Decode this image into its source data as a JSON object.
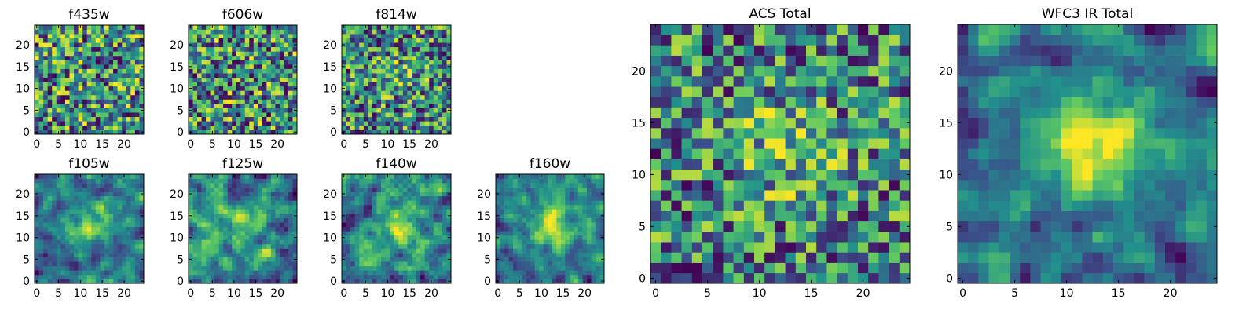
{
  "figure": {
    "title": ""
  },
  "colormap": [
    "#440154",
    "#3b528b",
    "#21918c",
    "#5ec962",
    "#fde725"
  ],
  "chart_data": [
    {
      "type": "heatmap",
      "title": "f435w",
      "size": 25,
      "seed": 11,
      "smooth": 0,
      "center_boost": 0.0,
      "xticks": [
        0,
        5,
        10,
        15,
        20
      ],
      "yticks": [
        0,
        5,
        10,
        15,
        20
      ],
      "xlim": [
        -0.5,
        24.5
      ],
      "ylim": [
        -0.5,
        24.5
      ],
      "value_range": [
        0,
        1
      ],
      "ticks": {
        "x0": "0",
        "x1": "5",
        "x2": "10",
        "x3": "15",
        "x4": "20",
        "y0": "0",
        "y1": "5",
        "y2": "10",
        "y3": "15",
        "y4": "20"
      }
    },
    {
      "type": "heatmap",
      "title": "f606w",
      "size": 25,
      "seed": 23,
      "smooth": 0,
      "center_boost": 0.0,
      "xticks": [
        0,
        5,
        10,
        15,
        20
      ],
      "yticks": [
        0,
        5,
        10,
        15,
        20
      ],
      "xlim": [
        -0.5,
        24.5
      ],
      "ylim": [
        -0.5,
        24.5
      ],
      "value_range": [
        0,
        1
      ],
      "ticks": {
        "x0": "0",
        "x1": "5",
        "x2": "10",
        "x3": "15",
        "x4": "20",
        "y0": "0",
        "y1": "5",
        "y2": "10",
        "y3": "15",
        "y4": "20"
      }
    },
    {
      "type": "heatmap",
      "title": "f814w",
      "size": 25,
      "seed": 37,
      "smooth": 0,
      "center_boost": 0.15,
      "xticks": [
        0,
        5,
        10,
        15,
        20
      ],
      "yticks": [
        0,
        5,
        10,
        15,
        20
      ],
      "xlim": [
        -0.5,
        24.5
      ],
      "ylim": [
        -0.5,
        24.5
      ],
      "value_range": [
        0,
        1
      ],
      "ticks": {
        "x0": "0",
        "x1": "5",
        "x2": "10",
        "x3": "15",
        "x4": "20",
        "y0": "0",
        "y1": "5",
        "y2": "10",
        "y3": "15",
        "y4": "20"
      }
    },
    {
      "type": "heatmap",
      "title": "f105w",
      "size": 25,
      "seed": 41,
      "smooth": 1,
      "center_boost": 0.45,
      "xticks": [
        0,
        5,
        10,
        15,
        20
      ],
      "yticks": [
        0,
        5,
        10,
        15,
        20
      ],
      "xlim": [
        -0.5,
        24.5
      ],
      "ylim": [
        -0.5,
        24.5
      ],
      "value_range": [
        0,
        1
      ],
      "ticks": {
        "x0": "0",
        "x1": "5",
        "x2": "10",
        "x3": "15",
        "x4": "20",
        "y0": "0",
        "y1": "5",
        "y2": "10",
        "y3": "15",
        "y4": "20"
      }
    },
    {
      "type": "heatmap",
      "title": "f125w",
      "size": 25,
      "seed": 53,
      "smooth": 1,
      "center_boost": 0.2,
      "xticks": [
        0,
        5,
        10,
        15,
        20
      ],
      "yticks": [
        0,
        5,
        10,
        15,
        20
      ],
      "xlim": [
        -0.5,
        24.5
      ],
      "ylim": [
        -0.5,
        24.5
      ],
      "value_range": [
        0,
        1
      ],
      "ticks": {
        "x0": "0",
        "x1": "5",
        "x2": "10",
        "x3": "15",
        "x4": "20",
        "y0": "0",
        "y1": "5",
        "y2": "10",
        "y3": "15",
        "y4": "20"
      }
    },
    {
      "type": "heatmap",
      "title": "f140w",
      "size": 25,
      "seed": 67,
      "smooth": 1,
      "center_boost": 0.35,
      "xticks": [
        0,
        5,
        10,
        15,
        20
      ],
      "yticks": [
        0,
        5,
        10,
        15,
        20
      ],
      "xlim": [
        -0.5,
        24.5
      ],
      "ylim": [
        -0.5,
        24.5
      ],
      "value_range": [
        0,
        1
      ],
      "ticks": {
        "x0": "0",
        "x1": "5",
        "x2": "10",
        "x3": "15",
        "x4": "20",
        "y0": "0",
        "y1": "5",
        "y2": "10",
        "y3": "15",
        "y4": "20"
      }
    },
    {
      "type": "heatmap",
      "title": "f160w",
      "size": 25,
      "seed": 79,
      "smooth": 1,
      "center_boost": 0.55,
      "xticks": [
        0,
        5,
        10,
        15,
        20
      ],
      "yticks": [
        0,
        5,
        10,
        15,
        20
      ],
      "xlim": [
        -0.5,
        24.5
      ],
      "ylim": [
        -0.5,
        24.5
      ],
      "value_range": [
        0,
        1
      ],
      "ticks": {
        "x0": "0",
        "x1": "5",
        "x2": "10",
        "x3": "15",
        "x4": "20",
        "y0": "0",
        "y1": "5",
        "y2": "10",
        "y3": "15",
        "y4": "20"
      }
    },
    {
      "type": "heatmap",
      "title": "ACS Total",
      "size": 25,
      "seed": 97,
      "smooth": 0,
      "center_boost": 0.25,
      "xticks": [
        0,
        5,
        10,
        15,
        20
      ],
      "yticks": [
        0,
        5,
        10,
        15,
        20
      ],
      "xlim": [
        -0.5,
        24.5
      ],
      "ylim": [
        -0.5,
        24.5
      ],
      "value_range": [
        0,
        1
      ],
      "ticks": {
        "x0": "0",
        "x1": "5",
        "x2": "10",
        "x3": "15",
        "x4": "20",
        "y0": "0",
        "y1": "5",
        "y2": "10",
        "y3": "15",
        "y4": "20"
      }
    },
    {
      "type": "heatmap",
      "title": "WFC3 IR Total",
      "size": 25,
      "seed": 113,
      "smooth": 1,
      "center_boost": 0.6,
      "xticks": [
        0,
        5,
        10,
        15,
        20
      ],
      "yticks": [
        0,
        5,
        10,
        15,
        20
      ],
      "xlim": [
        -0.5,
        24.5
      ],
      "ylim": [
        -0.5,
        24.5
      ],
      "value_range": [
        0,
        1
      ],
      "ticks": {
        "x0": "0",
        "x1": "5",
        "x2": "10",
        "x3": "15",
        "x4": "20",
        "y0": "0",
        "y1": "5",
        "y2": "10",
        "y3": "15",
        "y4": "20"
      }
    }
  ]
}
